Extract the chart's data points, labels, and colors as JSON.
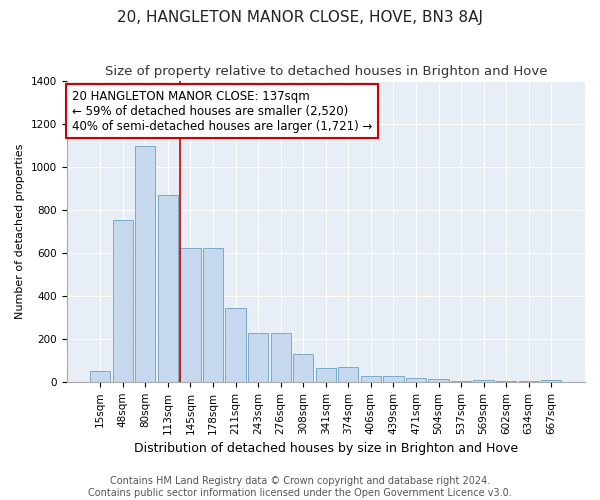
{
  "title": "20, HANGLETON MANOR CLOSE, HOVE, BN3 8AJ",
  "subtitle": "Size of property relative to detached houses in Brighton and Hove",
  "xlabel": "Distribution of detached houses by size in Brighton and Hove",
  "ylabel": "Number of detached properties",
  "footer_line1": "Contains HM Land Registry data © Crown copyright and database right 2024.",
  "footer_line2": "Contains public sector information licensed under the Open Government Licence v3.0.",
  "categories": [
    "15sqm",
    "48sqm",
    "80sqm",
    "113sqm",
    "145sqm",
    "178sqm",
    "211sqm",
    "243sqm",
    "276sqm",
    "308sqm",
    "341sqm",
    "374sqm",
    "406sqm",
    "439sqm",
    "471sqm",
    "504sqm",
    "537sqm",
    "569sqm",
    "602sqm",
    "634sqm",
    "667sqm"
  ],
  "values": [
    50,
    750,
    1095,
    870,
    620,
    620,
    345,
    225,
    225,
    130,
    65,
    70,
    28,
    25,
    20,
    12,
    5,
    8,
    3,
    3,
    10
  ],
  "bar_color": "#c5d8ed",
  "bar_edge_color": "#7aaac8",
  "background_color": "#e8eef5",
  "annotation_box_color": "#ffffff",
  "annotation_border_color": "#cc0000",
  "vline_color": "#cc0000",
  "vline_x_index": 4,
  "annotation_text_line1": "20 HANGLETON MANOR CLOSE: 137sqm",
  "annotation_text_line2": "← 59% of detached houses are smaller (2,520)",
  "annotation_text_line3": "40% of semi-detached houses are larger (1,721) →",
  "ylim": [
    0,
    1400
  ],
  "yticks": [
    0,
    200,
    400,
    600,
    800,
    1000,
    1200,
    1400
  ],
  "title_fontsize": 11,
  "subtitle_fontsize": 9.5,
  "xlabel_fontsize": 9,
  "ylabel_fontsize": 8,
  "tick_fontsize": 7.5,
  "annotation_fontsize": 8.5,
  "footer_fontsize": 7
}
